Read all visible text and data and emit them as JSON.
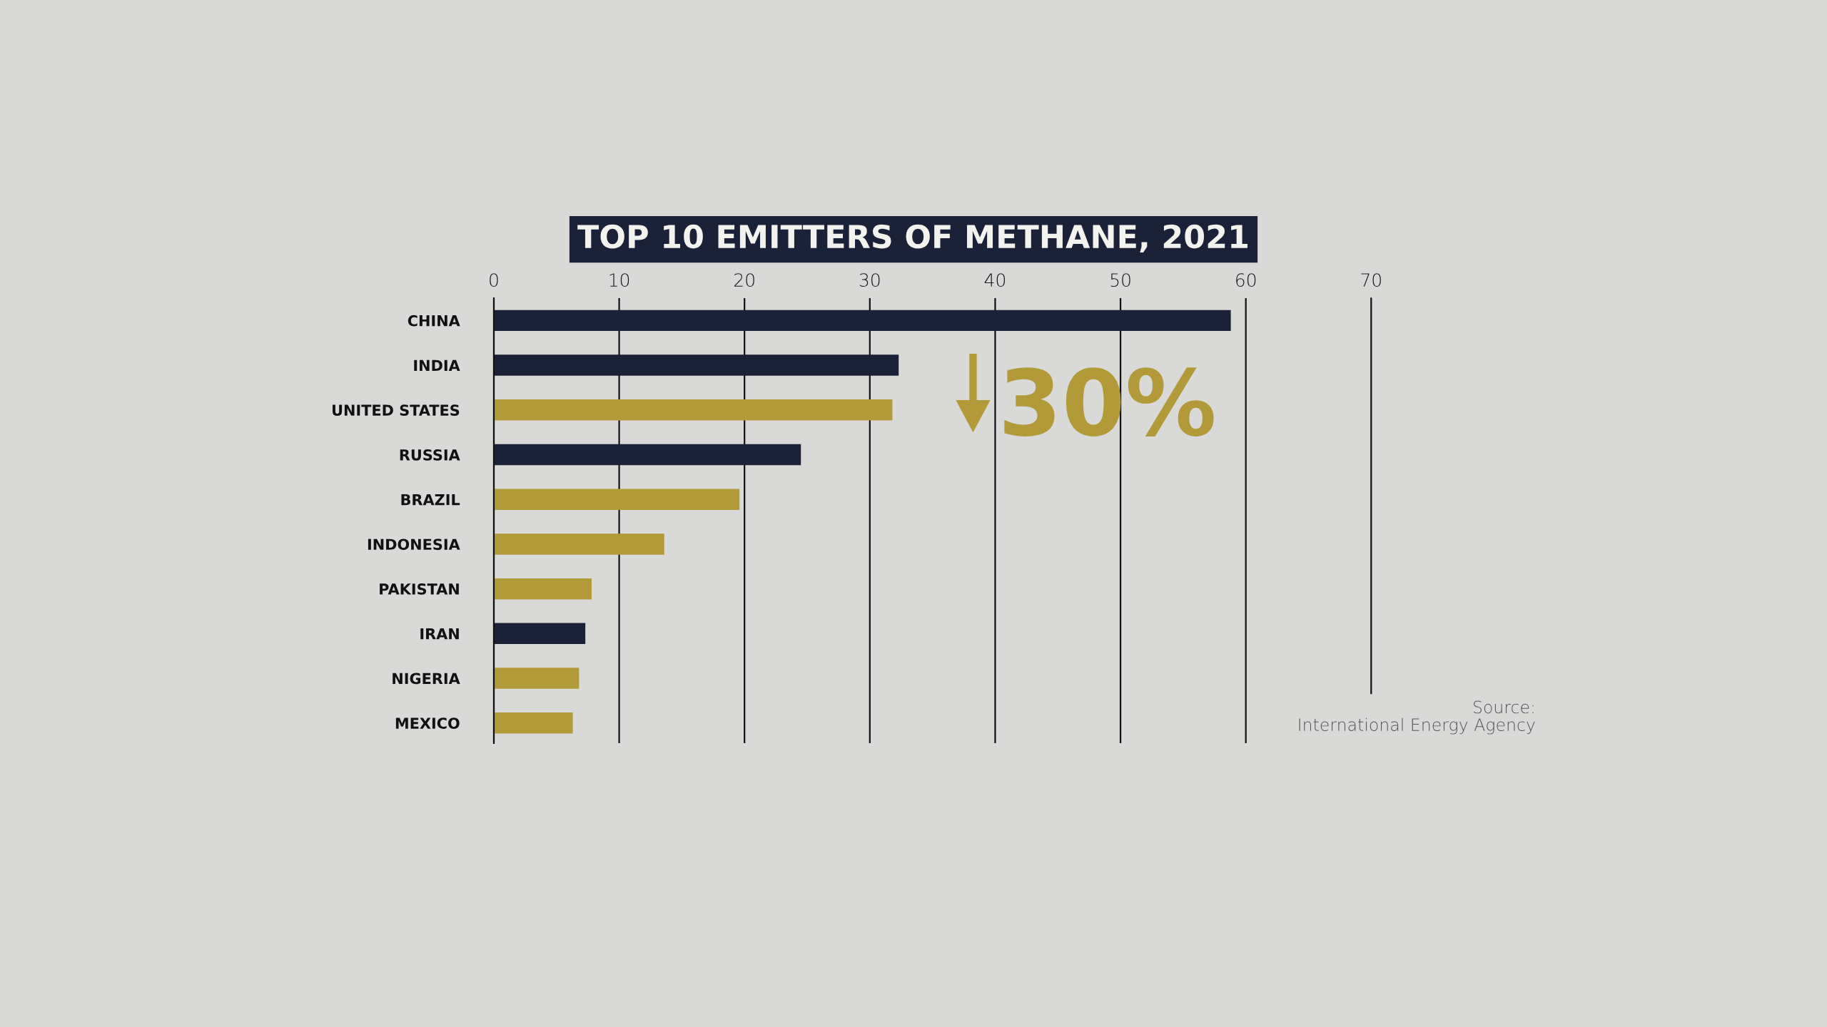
{
  "chart_data": {
    "type": "bar",
    "orientation": "horizontal",
    "title": "TOP 10 EMITTERS OF METHANE, 2021",
    "categories": [
      "CHINA",
      "INDIA",
      "UNITED STATES",
      "RUSSIA",
      "BRAZIL",
      "INDONESIA",
      "PAKISTAN",
      "IRAN",
      "NIGERIA",
      "MEXICO"
    ],
    "values": [
      58.8,
      32.3,
      31.8,
      24.5,
      19.6,
      13.6,
      7.8,
      7.3,
      6.8,
      6.3
    ],
    "colors": [
      "#1b2139",
      "#1b2139",
      "#b39a38",
      "#1b2139",
      "#b39a38",
      "#b39a38",
      "#b39a38",
      "#1b2139",
      "#b39a38",
      "#b39a38"
    ],
    "xlim": [
      0,
      70
    ],
    "xticks": [
      0,
      10,
      20,
      30,
      40,
      50,
      60,
      70
    ],
    "grid": "x",
    "annotations": [
      "30%",
      "Source:\nInternational Energy Agency"
    ]
  }
}
